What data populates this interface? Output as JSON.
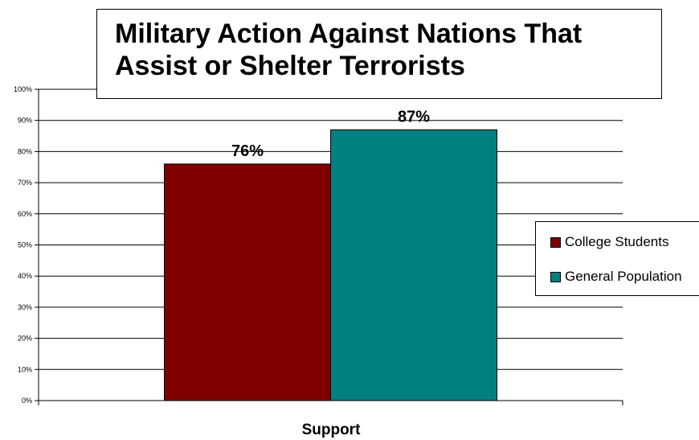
{
  "chart_data": {
    "type": "bar",
    "title_lines": [
      "Military Action Against Nations That",
      "Assist or Shelter Terrorists"
    ],
    "xlabel": "Support",
    "ylabel": "",
    "categories": [
      "Support"
    ],
    "series": [
      {
        "name": "College Students",
        "values": [
          76
        ],
        "label": "76%",
        "color": "#800000"
      },
      {
        "name": "General Population",
        "values": [
          87
        ],
        "label": "87%",
        "color": "#008080"
      }
    ],
    "ylim": [
      0,
      100
    ],
    "yticks": [
      "0%",
      "10%",
      "20%",
      "30%",
      "40%",
      "50%",
      "60%",
      "70%",
      "80%",
      "90%",
      "100%"
    ],
    "grid": true,
    "legend_position": "right"
  }
}
